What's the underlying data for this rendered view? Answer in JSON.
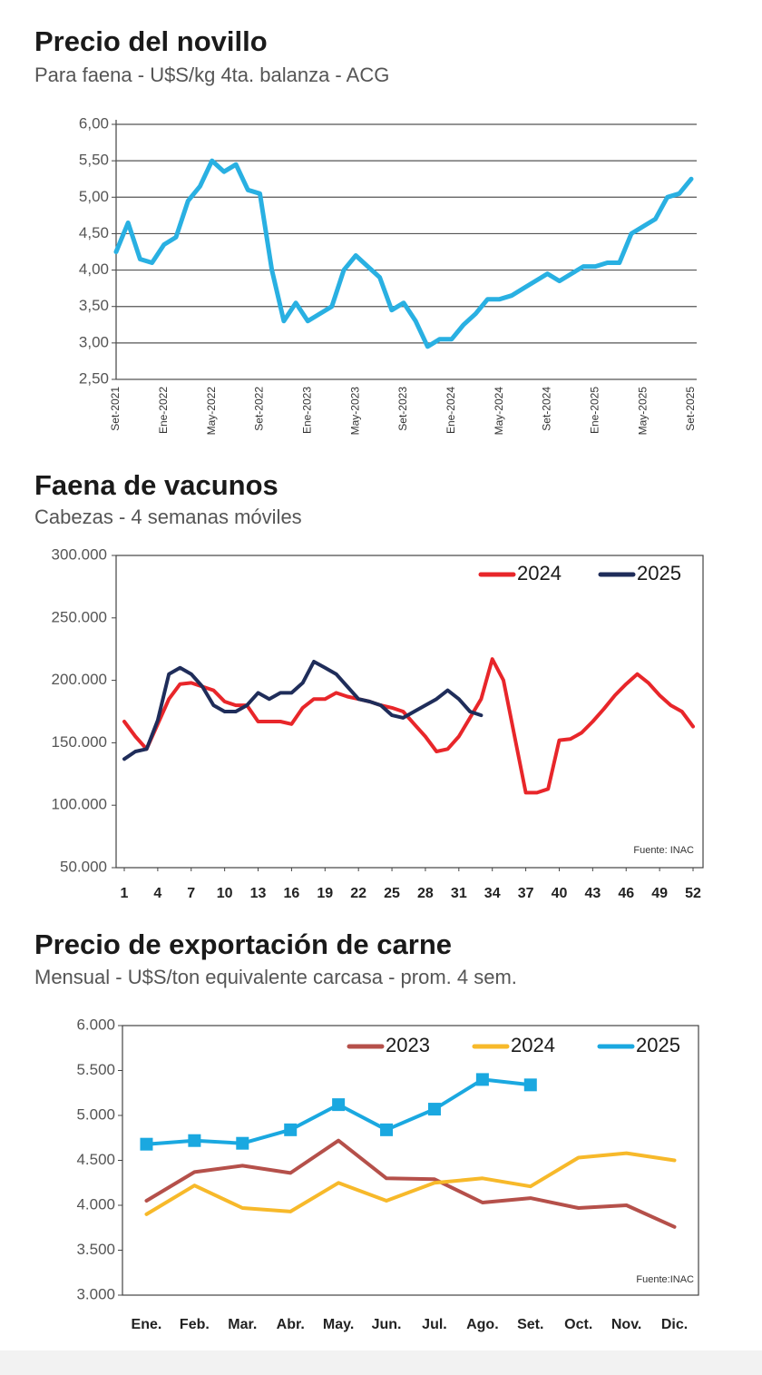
{
  "chart_data": [
    {
      "type": "line",
      "title": "Precio del novillo",
      "subtitle": "Para faena - U$S/kg 4ta. balanza - ACG",
      "categories": [
        "Set-2021",
        null,
        null,
        null,
        "Ene-2022",
        null,
        null,
        null,
        "May-2022",
        null,
        null,
        null,
        "Set-2022",
        null,
        null,
        null,
        "Ene-2023",
        null,
        null,
        null,
        "May-2023",
        null,
        null,
        null,
        "Set-2023",
        null,
        null,
        null,
        "Ene-2024",
        null,
        null,
        null,
        "May-2024",
        null,
        null,
        null,
        "Set-2024",
        null,
        null,
        null,
        "Ene-2025",
        null,
        null,
        null,
        "May-2025",
        null,
        null,
        null,
        "Set-2025"
      ],
      "values": [
        4.25,
        4.65,
        4.15,
        4.1,
        4.35,
        4.45,
        4.95,
        5.15,
        5.5,
        5.35,
        5.45,
        5.1,
        5.05,
        4.0,
        3.3,
        3.55,
        3.3,
        3.4,
        3.5,
        4.0,
        4.2,
        4.05,
        3.9,
        3.45,
        3.55,
        3.3,
        2.95,
        3.05,
        3.05,
        3.25,
        3.4,
        3.6,
        3.6,
        3.65,
        3.75,
        3.85,
        3.95,
        3.85,
        3.95,
        4.05,
        4.05,
        4.1,
        4.1,
        4.5,
        4.6,
        4.7,
        5.0,
        5.05,
        5.25
      ],
      "color": "#29b0e2",
      "ylim": [
        2.5,
        6
      ],
      "yticks": [
        {
          "value": 2.5,
          "label": "2,50"
        },
        {
          "value": 3,
          "label": "3,00"
        },
        {
          "value": 3.5,
          "label": "3,50"
        },
        {
          "value": 4,
          "label": "4,00"
        },
        {
          "value": 4.5,
          "label": "4,50"
        },
        {
          "value": 5,
          "label": "5,00"
        },
        {
          "value": 5.5,
          "label": "5,50"
        },
        {
          "value": 6,
          "label": "6,00"
        }
      ],
      "grid": true
    },
    {
      "type": "line",
      "title": "Faena de vacunos",
      "subtitle": "Cabezas - 4 semanas móviles",
      "x": [
        1,
        2,
        3,
        4,
        5,
        6,
        7,
        8,
        9,
        10,
        11,
        12,
        13,
        14,
        15,
        16,
        17,
        18,
        19,
        20,
        21,
        22,
        23,
        24,
        25,
        26,
        27,
        28,
        29,
        30,
        31,
        32,
        33,
        34,
        35,
        36,
        37,
        38,
        39,
        40,
        41,
        42,
        43,
        44,
        45,
        46,
        47,
        48,
        49,
        50,
        51,
        52
      ],
      "xlim": [
        1,
        52
      ],
      "xticks": [
        1,
        4,
        7,
        10,
        13,
        16,
        19,
        22,
        25,
        28,
        31,
        34,
        37,
        40,
        43,
        46,
        49,
        52
      ],
      "series": [
        {
          "name": "2024",
          "color": "#e8262a",
          "values": [
            167000,
            155000,
            145000,
            165000,
            185000,
            197000,
            198000,
            195000,
            192000,
            183000,
            180000,
            180000,
            167000,
            167000,
            167000,
            165000,
            178000,
            185000,
            185000,
            190000,
            187000,
            185000,
            183000,
            180000,
            178000,
            175000,
            165000,
            155000,
            143000,
            145000,
            155000,
            170000,
            185000,
            217000,
            200000,
            155000,
            110000,
            110000,
            113000,
            152000,
            153000,
            158000,
            167000,
            177000,
            188000,
            197000,
            205000,
            198000,
            188000,
            180000,
            175000,
            163000
          ]
        },
        {
          "name": "2025",
          "color": "#1f2d5a",
          "values": [
            137000,
            143000,
            145000,
            168000,
            205000,
            210000,
            205000,
            195000,
            180000,
            175000,
            175000,
            180000,
            190000,
            185000,
            190000,
            190000,
            198000,
            215000,
            210000,
            205000,
            195000,
            185000,
            183000,
            180000,
            172000,
            170000,
            175000,
            180000,
            185000,
            192000,
            185000,
            175000,
            172000,
            null,
            null,
            null,
            null,
            null,
            null,
            null,
            null,
            null,
            null,
            null,
            null,
            null,
            null,
            null,
            null,
            null,
            null,
            null
          ]
        }
      ],
      "ylim": [
        50000,
        300000
      ],
      "yticks": [
        {
          "value": 50000,
          "label": "50.000"
        },
        {
          "value": 100000,
          "label": "100.000"
        },
        {
          "value": 150000,
          "label": "150.000"
        },
        {
          "value": 200000,
          "label": "200.000"
        },
        {
          "value": 250000,
          "label": "250.000"
        },
        {
          "value": 300000,
          "label": "300.000"
        }
      ],
      "grid": false,
      "legend": "top-right",
      "annotation": "Fuente: INAC"
    },
    {
      "type": "line",
      "title": "Precio de exportación de carne",
      "subtitle": "Mensual - U$S/ton equivalente carcasa - prom. 4 sem.",
      "categories": [
        "Ene.",
        "Feb.",
        "Mar.",
        "Abr.",
        "May.",
        "Jun.",
        "Jul.",
        "Ago.",
        "Set.",
        "Oct.",
        "Nov.",
        "Dic."
      ],
      "series": [
        {
          "name": "2023",
          "color": "#b5504a",
          "values": [
            4050,
            4370,
            4440,
            4360,
            4720,
            4300,
            4290,
            4030,
            4080,
            3970,
            4000,
            3760
          ]
        },
        {
          "name": "2024",
          "color": "#f7b92a",
          "values": [
            3900,
            4220,
            3970,
            3930,
            4250,
            4050,
            4250,
            4300,
            4210,
            4530,
            4580,
            4500
          ]
        },
        {
          "name": "2025",
          "color": "#1aa8e0",
          "values": [
            4680,
            4720,
            4690,
            4840,
            5120,
            4840,
            5070,
            5400,
            5340,
            null,
            null,
            null
          ],
          "markers": true
        }
      ],
      "ylim": [
        3000,
        6000
      ],
      "yticks": [
        {
          "value": 3000,
          "label": "3.000"
        },
        {
          "value": 3500,
          "label": "3.500"
        },
        {
          "value": 4000,
          "label": "4.000"
        },
        {
          "value": 4500,
          "label": "4.500"
        },
        {
          "value": 5000,
          "label": "5.000"
        },
        {
          "value": 5500,
          "label": "5.500"
        },
        {
          "value": 6000,
          "label": "6.000"
        }
      ],
      "grid": false,
      "legend": "top-right",
      "annotation": "Fuente:INAC"
    }
  ]
}
